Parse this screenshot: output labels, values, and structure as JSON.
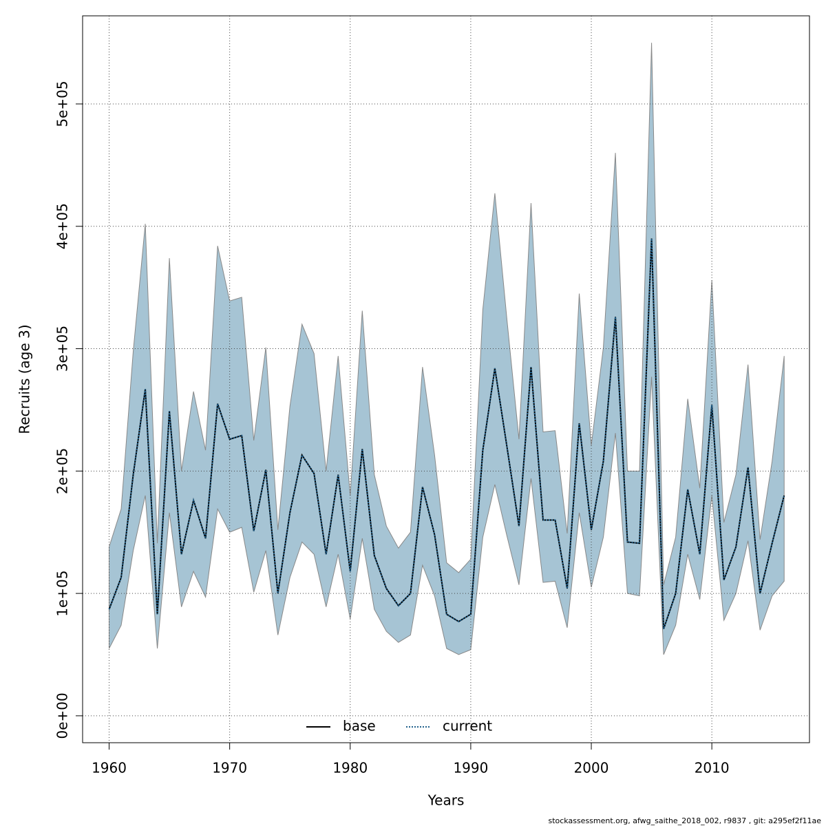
{
  "chart_data": {
    "type": "line",
    "x_label": "Years",
    "y_label": "Recruits (age 3)",
    "footer": "stockassessment.org, afwg_saithe_2018_002, r9837 , git: a295ef2f11ae",
    "x": [
      1960,
      1961,
      1962,
      1963,
      1964,
      1965,
      1966,
      1967,
      1968,
      1969,
      1970,
      1971,
      1972,
      1973,
      1974,
      1975,
      1976,
      1977,
      1978,
      1979,
      1980,
      1981,
      1982,
      1983,
      1984,
      1985,
      1986,
      1987,
      1988,
      1989,
      1990,
      1991,
      1992,
      1993,
      1994,
      1995,
      1996,
      1997,
      1998,
      1999,
      2000,
      2001,
      2002,
      2003,
      2004,
      2005,
      2006,
      2007,
      2008,
      2009,
      2010,
      2011,
      2012,
      2013,
      2014,
      2015,
      2016
    ],
    "band": {
      "color": "#a6c4d4",
      "lower": [
        55000,
        74000,
        135000,
        180000,
        55000,
        166000,
        89000,
        118000,
        97000,
        169000,
        150000,
        154000,
        101000,
        135000,
        66000,
        113000,
        142000,
        132000,
        89000,
        132000,
        79000,
        145000,
        87000,
        69000,
        60000,
        66000,
        123000,
        98000,
        55000,
        50000,
        54000,
        146000,
        189000,
        147000,
        107000,
        194000,
        109000,
        110000,
        72000,
        166000,
        105000,
        146000,
        231000,
        100000,
        98000,
        277000,
        50000,
        74000,
        132000,
        95000,
        180000,
        78000,
        100000,
        143000,
        70000,
        98000,
        110000
      ],
      "upper": [
        138000,
        169000,
        298000,
        402000,
        141000,
        374000,
        200000,
        265000,
        217000,
        384000,
        339000,
        342000,
        225000,
        301000,
        152000,
        253000,
        320000,
        296000,
        200000,
        294000,
        180000,
        331000,
        197000,
        155000,
        137000,
        150000,
        285000,
        213000,
        125000,
        117000,
        128000,
        332000,
        427000,
        324000,
        226000,
        419000,
        232000,
        233000,
        149000,
        345000,
        221000,
        301000,
        460000,
        200000,
        200000,
        550000,
        107000,
        146000,
        259000,
        186000,
        356000,
        158000,
        197000,
        287000,
        144000,
        208000,
        294000
      ]
    },
    "series": [
      {
        "name": "base",
        "color": "#000000",
        "dash": "none",
        "values": [
          87000,
          113000,
          197000,
          267000,
          83000,
          249000,
          132000,
          176000,
          145000,
          255000,
          226000,
          229000,
          151000,
          201000,
          100000,
          166000,
          213000,
          198000,
          132000,
          197000,
          118000,
          218000,
          131000,
          104000,
          90000,
          100000,
          187000,
          148000,
          83000,
          77000,
          83000,
          217000,
          284000,
          220000,
          155000,
          285000,
          160000,
          160000,
          104000,
          239000,
          152000,
          208000,
          326000,
          142000,
          141000,
          390000,
          71000,
          100000,
          185000,
          132000,
          254000,
          111000,
          138000,
          203000,
          100000,
          141000,
          180000
        ]
      },
      {
        "name": "current",
        "color": "#1f5f8b",
        "dash": "2 2",
        "values": [
          87000,
          113000,
          197000,
          267000,
          83000,
          249000,
          132000,
          176000,
          145000,
          255000,
          226000,
          229000,
          151000,
          201000,
          100000,
          166000,
          213000,
          198000,
          132000,
          197000,
          118000,
          218000,
          131000,
          104000,
          90000,
          100000,
          187000,
          148000,
          83000,
          77000,
          83000,
          217000,
          284000,
          220000,
          155000,
          285000,
          160000,
          160000,
          104000,
          239000,
          152000,
          208000,
          326000,
          142000,
          141000,
          390000,
          71000,
          100000,
          185000,
          132000,
          254000,
          111000,
          138000,
          203000,
          100000,
          141000,
          180000
        ]
      }
    ],
    "xlim": [
      1957.8,
      2018.1
    ],
    "ylim": [
      -22000,
      572000
    ],
    "xticks": [
      1960,
      1970,
      1980,
      1990,
      2000,
      2010
    ],
    "yticks": [
      {
        "value": 0,
        "label": "0e+00"
      },
      {
        "value": 100000,
        "label": "1e+05"
      },
      {
        "value": 200000,
        "label": "2e+05"
      },
      {
        "value": 300000,
        "label": "3e+05"
      },
      {
        "value": 400000,
        "label": "4e+05"
      },
      {
        "value": 500000,
        "label": "5e+05"
      }
    ],
    "grid": true,
    "legend": "bottom"
  }
}
